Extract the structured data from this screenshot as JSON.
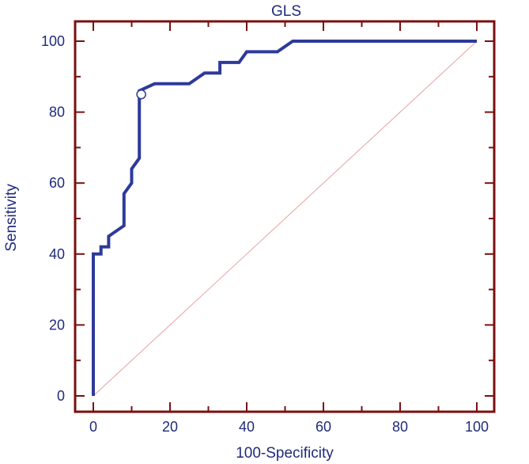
{
  "chart_data": {
    "type": "line",
    "title": "GLS",
    "xlabel": "100-Specificity",
    "ylabel": "Sensitivity",
    "xlim": [
      0,
      100
    ],
    "ylim": [
      0,
      100
    ],
    "xticks": [
      "0",
      "20",
      "40",
      "60",
      "80",
      "100"
    ],
    "yticks": [
      "0",
      "20",
      "40",
      "60",
      "80",
      "100"
    ],
    "grid": false,
    "colors": {
      "curve": "#2e3a9a",
      "reference": "#e8a0a0",
      "frame": "#7a1010",
      "text": "#1f2b7a"
    },
    "series": [
      {
        "x": [
          0,
          0,
          2,
          2,
          4,
          4,
          8,
          8,
          10,
          10,
          12,
          12,
          14,
          16,
          20,
          25,
          29,
          33,
          33,
          38,
          40,
          48,
          52,
          100
        ],
        "y": [
          0,
          40,
          40,
          42,
          42,
          45,
          48,
          57,
          60,
          64,
          67,
          86,
          87,
          88,
          88,
          88,
          91,
          91,
          94,
          94,
          97,
          97,
          100,
          100
        ]
      }
    ],
    "reference_line": {
      "x": [
        0,
        100
      ],
      "y": [
        0,
        100
      ]
    },
    "marker_point": {
      "x": 12.5,
      "y": 85
    }
  }
}
